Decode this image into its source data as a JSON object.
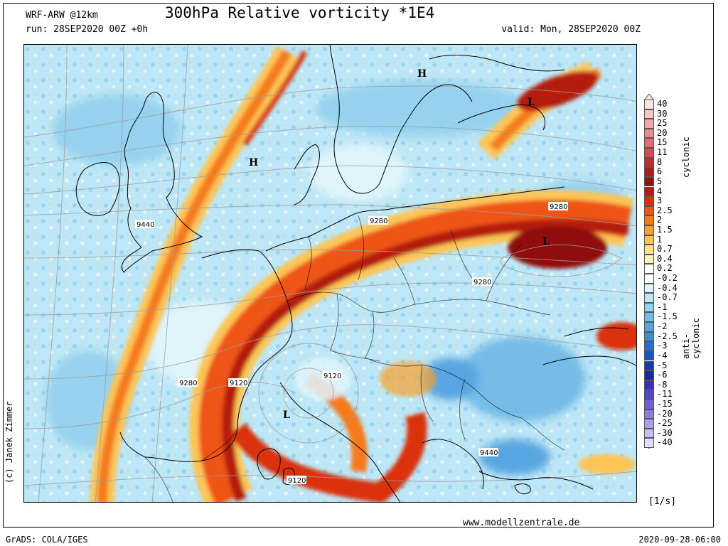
{
  "header": {
    "model": "WRF-ARW @12km",
    "run": "run: 28SEP2020 00Z +0h",
    "title": "300hPa Relative vorticity *1E4",
    "valid": "valid: Mon, 28SEP2020 00Z"
  },
  "footer": {
    "credit": "(c) Janek Zimmer",
    "website": "www.modellzentrale.de",
    "grads": "GrADS: COLA/IGES",
    "timestamp": "2020-09-28-06:00",
    "unit": "[1/s]"
  },
  "colorbar": {
    "label_cyclonic": "cyclonic",
    "label_anticyclonic": "anti-cyclonic",
    "levels": [
      {
        "label": "40",
        "color": "#fbe3e4"
      },
      {
        "label": "30",
        "color": "#f7c6c9"
      },
      {
        "label": "25",
        "color": "#f1a8ad"
      },
      {
        "label": "20",
        "color": "#ea8990"
      },
      {
        "label": "15",
        "color": "#e06c74"
      },
      {
        "label": "11",
        "color": "#d34b53"
      },
      {
        "label": "8",
        "color": "#c22a30"
      },
      {
        "label": "6",
        "color": "#a81e1e"
      },
      {
        "label": "5",
        "color": "#8f1010"
      },
      {
        "label": "4",
        "color": "#b41c10"
      },
      {
        "label": "3",
        "color": "#d9300e"
      },
      {
        "label": "2.5",
        "color": "#ee5518"
      },
      {
        "label": "2",
        "color": "#f47a1c"
      },
      {
        "label": "1.5",
        "color": "#f8a131"
      },
      {
        "label": "1",
        "color": "#fcc556"
      },
      {
        "label": "0.7",
        "color": "#fde385"
      },
      {
        "label": "0.4",
        "color": "#fff2b8"
      },
      {
        "label": "0.2",
        "color": "#ffffff"
      },
      {
        "label": "-0.2",
        "color": "#ffffff"
      },
      {
        "label": "-0.4",
        "color": "#dff4fb"
      },
      {
        "label": "-0.7",
        "color": "#bde7f6"
      },
      {
        "label": "-1",
        "color": "#96d2ef"
      },
      {
        "label": "-1.5",
        "color": "#74bce8"
      },
      {
        "label": "-2",
        "color": "#58a5e1"
      },
      {
        "label": "-2.5",
        "color": "#3f8bd8"
      },
      {
        "label": "-3",
        "color": "#2a6fcf"
      },
      {
        "label": "-4",
        "color": "#1b55c4"
      },
      {
        "label": "-5",
        "color": "#1738b3"
      },
      {
        "label": "-6",
        "color": "#1a27a5"
      },
      {
        "label": "-8",
        "color": "#3a2fb5"
      },
      {
        "label": "-11",
        "color": "#5445c4"
      },
      {
        "label": "-15",
        "color": "#6f5fd2"
      },
      {
        "label": "-20",
        "color": "#8c7fdf"
      },
      {
        "label": "-25",
        "color": "#aba0ea"
      },
      {
        "label": "-30",
        "color": "#c9c1f3"
      },
      {
        "label": "-40",
        "color": "#e3ddfa"
      }
    ]
  },
  "map": {
    "pressure_centers": [
      {
        "label": "H"
      },
      {
        "label": "H"
      },
      {
        "label": "L"
      },
      {
        "label": "L"
      },
      {
        "label": "L"
      }
    ],
    "contour_labels": [
      {
        "label": "9440"
      },
      {
        "label": "9280"
      },
      {
        "label": "9280"
      },
      {
        "label": "9280"
      },
      {
        "label": "9280"
      },
      {
        "label": "9120"
      },
      {
        "label": "9120"
      },
      {
        "label": "9120"
      },
      {
        "label": "9440"
      }
    ]
  }
}
